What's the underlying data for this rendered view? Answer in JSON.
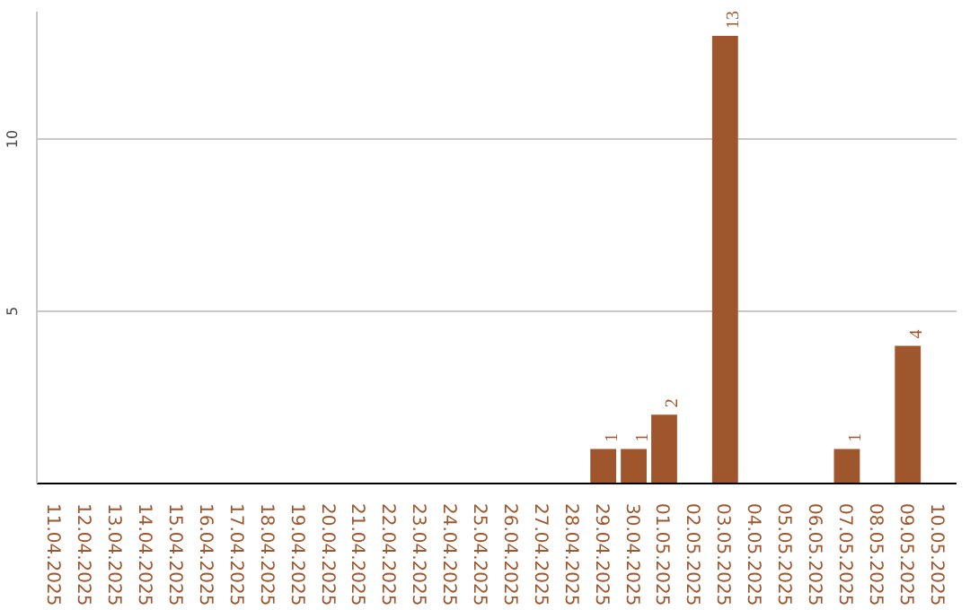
{
  "chart_data": {
    "type": "bar",
    "categories": [
      "11.04.2025",
      "12.04.2025",
      "13.04.2025",
      "14.04.2025",
      "15.04.2025",
      "16.04.2025",
      "17.04.2025",
      "18.04.2025",
      "19.04.2025",
      "20.04.2025",
      "21.04.2025",
      "22.04.2025",
      "23.04.2025",
      "24.04.2025",
      "25.04.2025",
      "26.04.2025",
      "27.04.2025",
      "28.04.2025",
      "29.04.2025",
      "30.04.2025",
      "01.05.2025",
      "02.05.2025",
      "03.05.2025",
      "04.05.2025",
      "05.05.2025",
      "06.05.2025",
      "07.05.2025",
      "08.05.2025",
      "09.05.2025",
      "10.05.2025"
    ],
    "values": [
      0,
      0,
      0,
      0,
      0,
      0,
      0,
      0,
      0,
      0,
      0,
      0,
      0,
      0,
      0,
      0,
      0,
      0,
      1,
      1,
      2,
      0,
      13,
      0,
      0,
      0,
      1,
      0,
      4,
      0
    ],
    "value_labels": [
      null,
      null,
      null,
      null,
      null,
      null,
      null,
      null,
      null,
      null,
      null,
      null,
      null,
      null,
      null,
      null,
      null,
      null,
      "1",
      "1",
      "2",
      null,
      "13",
      null,
      null,
      null,
      "1",
      null,
      "4",
      null
    ],
    "color": "#a0562c",
    "ylim": [
      0,
      13.7
    ],
    "yticks": [
      5,
      10
    ],
    "grid": "y"
  }
}
